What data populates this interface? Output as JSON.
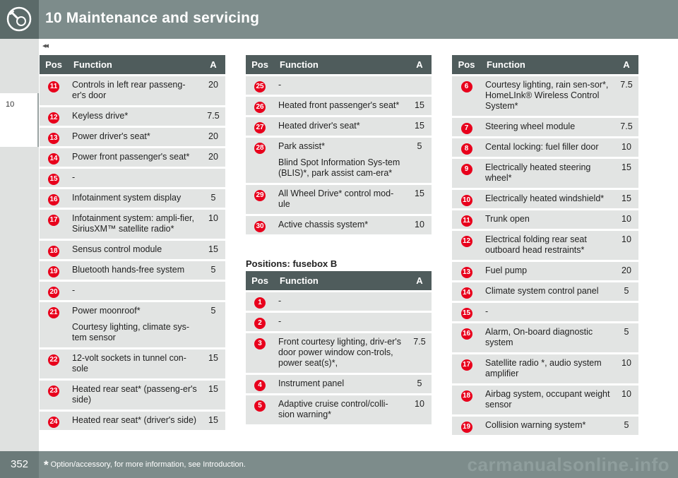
{
  "header": {
    "title": "10 Maintenance and servicing",
    "back_marks": "◂◂"
  },
  "sidebar": {
    "chapter": "10"
  },
  "footer": {
    "page_number": "352",
    "footnote_star": "*",
    "footnote_text": "Option/accessory, for more information, see Introduction.",
    "watermark": "carmanualsonline.info"
  },
  "colors": {
    "header": "#7d8c8b",
    "table_head": "#4f5c5c",
    "row": "#e2e4e3",
    "badge": "#e8001c"
  },
  "table1": {
    "headers": {
      "pos": "Pos",
      "function": "Function",
      "a": "A"
    },
    "rows": [
      {
        "pos": "11",
        "function": [
          "Controls in left rear passeng-er's door"
        ],
        "a": "20"
      },
      {
        "pos": "12",
        "function": [
          "Keyless drive*"
        ],
        "a": "7.5"
      },
      {
        "pos": "13",
        "function": [
          "Power driver's seat*"
        ],
        "a": "20"
      },
      {
        "pos": "14",
        "function": [
          "Power front passenger's seat*"
        ],
        "a": "20"
      },
      {
        "pos": "15",
        "function": [
          "-"
        ],
        "a": ""
      },
      {
        "pos": "16",
        "function": [
          "Infotainment system display"
        ],
        "a": "5"
      },
      {
        "pos": "17",
        "function": [
          "Infotainment system: ampli-fier, SiriusXM™ satellite radio*"
        ],
        "a": "10"
      },
      {
        "pos": "18",
        "function": [
          "Sensus control module"
        ],
        "a": "15"
      },
      {
        "pos": "19",
        "function": [
          "Bluetooth hands-free system"
        ],
        "a": "5"
      },
      {
        "pos": "20",
        "function": [
          "-"
        ],
        "a": ""
      },
      {
        "pos": "21",
        "function": [
          "Power moonroof*",
          "Courtesy lighting, climate sys-tem sensor"
        ],
        "a": "5"
      },
      {
        "pos": "22",
        "function": [
          "12-volt sockets in tunnel con-sole"
        ],
        "a": "15"
      },
      {
        "pos": "23",
        "function": [
          "Heated rear seat* (passeng-er's side)"
        ],
        "a": "15"
      },
      {
        "pos": "24",
        "function": [
          "Heated rear seat* (driver's side)"
        ],
        "a": "15"
      }
    ]
  },
  "table2": {
    "headers": {
      "pos": "Pos",
      "function": "Function",
      "a": "A"
    },
    "rows": [
      {
        "pos": "25",
        "function": [
          "-"
        ],
        "a": ""
      },
      {
        "pos": "26",
        "function": [
          "Heated front passenger's seat*"
        ],
        "a": "15"
      },
      {
        "pos": "27",
        "function": [
          "Heated driver's seat*"
        ],
        "a": "15"
      },
      {
        "pos": "28",
        "function": [
          "Park assist*",
          "Blind Spot Information Sys-tem (BLIS)*, park assist cam-era*"
        ],
        "a": "5"
      },
      {
        "pos": "29",
        "function": [
          "All Wheel Drive* control mod-ule"
        ],
        "a": "15"
      },
      {
        "pos": "30",
        "function": [
          "Active chassis system*"
        ],
        "a": "10"
      }
    ]
  },
  "section_b": {
    "title": "Positions: fusebox B"
  },
  "table3": {
    "headers": {
      "pos": "Pos",
      "function": "Function",
      "a": "A"
    },
    "rows": [
      {
        "pos": "1",
        "function": [
          "-"
        ],
        "a": ""
      },
      {
        "pos": "2",
        "function": [
          "-"
        ],
        "a": ""
      },
      {
        "pos": "3",
        "function": [
          "Front courtesy lighting, driv-er's door power window con-trols, power seat(s)*,"
        ],
        "a": "7.5"
      },
      {
        "pos": "4",
        "function": [
          "Instrument panel"
        ],
        "a": "5"
      },
      {
        "pos": "5",
        "function": [
          "Adaptive cruise control/colli-sion warning*"
        ],
        "a": "10"
      }
    ]
  },
  "table4": {
    "headers": {
      "pos": "Pos",
      "function": "Function",
      "a": "A"
    },
    "rows": [
      {
        "pos": "6",
        "function": [
          "Courtesy lighting, rain sen-sor*, HomeLInk® Wireless Control System*"
        ],
        "a": "7.5"
      },
      {
        "pos": "7",
        "function": [
          "Steering wheel module"
        ],
        "a": "7.5"
      },
      {
        "pos": "8",
        "function": [
          "Cental locking: fuel filler door"
        ],
        "a": "10"
      },
      {
        "pos": "9",
        "function": [
          "Electrically heated steering wheel*"
        ],
        "a": "15"
      },
      {
        "pos": "10",
        "function": [
          "Electrically heated windshield*"
        ],
        "a": "15"
      },
      {
        "pos": "11",
        "function": [
          "Trunk open"
        ],
        "a": "10"
      },
      {
        "pos": "12",
        "function": [
          "Electrical folding rear seat outboard head restraints*"
        ],
        "a": "10"
      },
      {
        "pos": "13",
        "function": [
          "Fuel pump"
        ],
        "a": "20"
      },
      {
        "pos": "14",
        "function": [
          "Climate system control panel"
        ],
        "a": "5"
      },
      {
        "pos": "15",
        "function": [
          "-"
        ],
        "a": ""
      },
      {
        "pos": "16",
        "function": [
          "Alarm, On-board diagnostic system"
        ],
        "a": "5"
      },
      {
        "pos": "17",
        "function": [
          "Satellite radio *, audio system amplifier"
        ],
        "a": "10"
      },
      {
        "pos": "18",
        "function": [
          "Airbag system, occupant weight sensor"
        ],
        "a": "10"
      },
      {
        "pos": "19",
        "function": [
          "Collision warning system*"
        ],
        "a": "5"
      }
    ]
  }
}
